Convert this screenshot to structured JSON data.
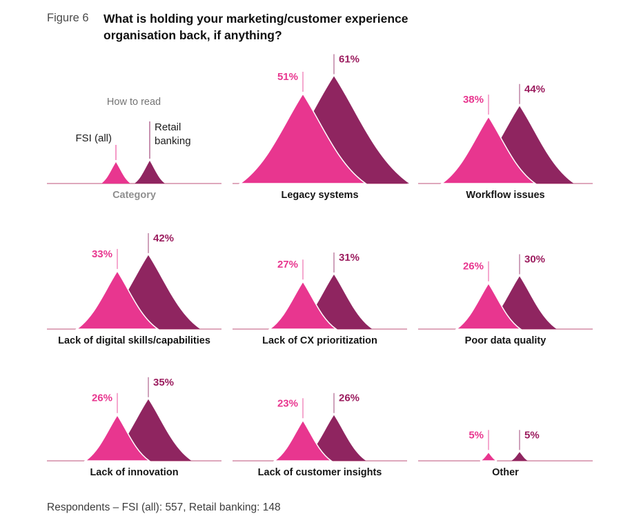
{
  "figure": {
    "label": "Figure 6",
    "title": "What is holding your marketing/customer experience organisation back, if anything?"
  },
  "legend": {
    "heading": "How to read",
    "series1": "FSI (all)",
    "series2_line1": "Retail",
    "series2_line2": "banking",
    "axis_label": "Category"
  },
  "colors": {
    "fsi": "#e8368f",
    "retail": "#8f2560",
    "fsi_label": "#e8368f",
    "retail_label": "#9b1c5e",
    "baseline": "#be5078"
  },
  "footnote": "Respondents – FSI (all): 557, Retail banking: 148",
  "chart_data": {
    "type": "area",
    "variant": "paired-peaks",
    "title": "What is holding your marketing/customer experience organisation back, if anything?",
    "unit": "%",
    "legend_position": "top-left cell (How to read: FSI (all) vs Retail banking, x-axis = Category)",
    "grid": "3x3; first cell is legend",
    "categories": [
      "Legacy systems",
      "Workflow issues",
      "Lack of digital skills/capabilities",
      "Lack of CX prioritization",
      "Poor data quality",
      "Lack of innovation",
      "Lack of customer insights",
      "Other"
    ],
    "series": [
      {
        "name": "FSI (all)",
        "color": "#e8368f",
        "values": [
          51,
          38,
          33,
          27,
          26,
          26,
          23,
          5
        ]
      },
      {
        "name": "Retail banking",
        "color": "#8f2560",
        "values": [
          61,
          44,
          42,
          31,
          30,
          35,
          26,
          5
        ]
      }
    ],
    "value_labels": {
      "fsi": [
        "51%",
        "38%",
        "33%",
        "27%",
        "26%",
        "26%",
        "23%",
        "5%"
      ],
      "retail": [
        "61%",
        "44%",
        "42%",
        "31%",
        "30%",
        "35%",
        "26%",
        "5%"
      ]
    },
    "respondents": {
      "fsi_all": 557,
      "retail_banking": 148
    }
  }
}
